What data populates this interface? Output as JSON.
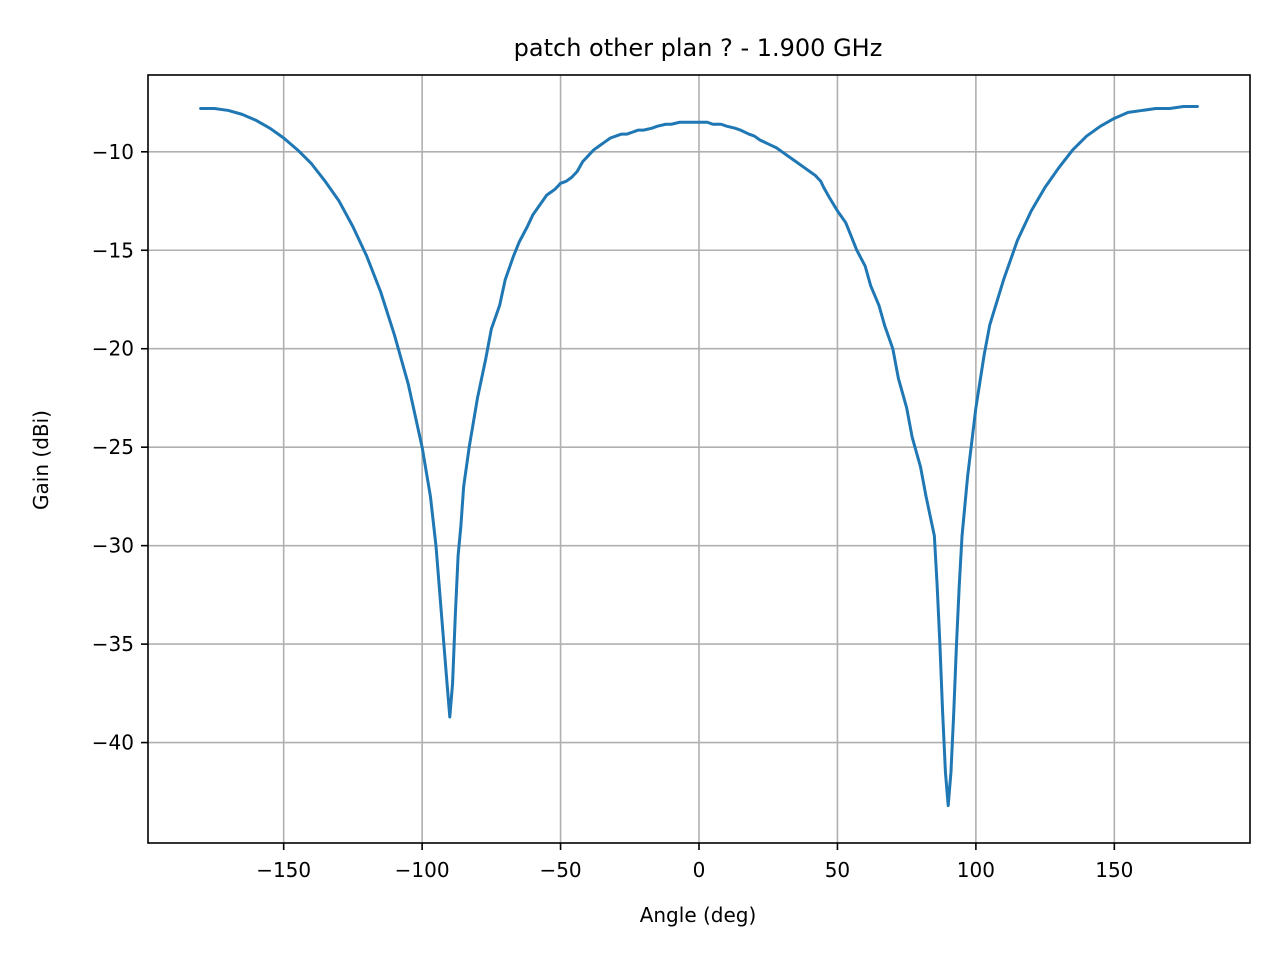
{
  "chart_data": {
    "type": "line",
    "title": "patch other plan ? - 1.900 GHz",
    "xlabel": "Angle (deg)",
    "ylabel": "Gain (dBi)",
    "xlim": [
      -199,
      199
    ],
    "ylim": [
      -45.1,
      -6.1
    ],
    "xticks": [
      -150,
      -100,
      -50,
      0,
      50,
      100,
      150
    ],
    "xtick_labels": [
      "−150",
      "−100",
      "−50",
      "0",
      "50",
      "100",
      "150"
    ],
    "yticks": [
      -10,
      -15,
      -20,
      -25,
      -30,
      -35,
      -40
    ],
    "ytick_labels": [
      "−10",
      "−15",
      "−20",
      "−25",
      "−30",
      "−35",
      "−40"
    ],
    "grid": true,
    "series": [
      {
        "color": "#1f77b4",
        "x": [
          -180,
          -175,
          -170,
          -165,
          -160,
          -155,
          -150,
          -145,
          -140,
          -135,
          -130,
          -125,
          -120,
          -115,
          -110,
          -105,
          -100,
          -97,
          -95,
          -93,
          -91,
          -90,
          -89,
          -88,
          -87,
          -86,
          -85,
          -83,
          -80,
          -77,
          -75,
          -72,
          -70,
          -67,
          -65,
          -62,
          -60,
          -57,
          -55,
          -52,
          -50,
          -48,
          -46,
          -44,
          -42,
          -40,
          -38,
          -36,
          -34,
          -32,
          -30,
          -28,
          -26,
          -24,
          -22,
          -20,
          -17,
          -15,
          -12,
          -10,
          -7,
          -5,
          -2,
          0,
          3,
          5,
          8,
          10,
          13,
          15,
          18,
          20,
          22,
          25,
          28,
          30,
          32,
          35,
          38,
          40,
          42,
          44,
          45,
          47,
          50,
          53,
          55,
          57,
          60,
          62,
          65,
          67,
          70,
          72,
          75,
          77,
          80,
          82,
          85,
          86,
          87,
          88,
          89,
          90,
          91,
          92,
          93,
          94,
          95,
          97,
          100,
          103,
          105,
          110,
          115,
          120,
          125,
          130,
          135,
          140,
          145,
          150,
          155,
          160,
          165,
          170,
          175,
          180
        ],
        "y": [
          -7.8,
          -7.8,
          -7.9,
          -8.1,
          -8.4,
          -8.8,
          -9.3,
          -9.9,
          -10.6,
          -11.5,
          -12.5,
          -13.8,
          -15.3,
          -17.1,
          -19.3,
          -21.8,
          -25.0,
          -27.5,
          -30.0,
          -33.5,
          -37.0,
          -38.7,
          -37.0,
          -33.5,
          -30.5,
          -29.0,
          -27.0,
          -25.0,
          -22.5,
          -20.5,
          -19.0,
          -17.8,
          -16.5,
          -15.3,
          -14.6,
          -13.8,
          -13.2,
          -12.6,
          -12.2,
          -11.9,
          -11.6,
          -11.5,
          -11.3,
          -11.0,
          -10.5,
          -10.2,
          -9.9,
          -9.7,
          -9.5,
          -9.3,
          -9.2,
          -9.1,
          -9.1,
          -9.0,
          -8.9,
          -8.9,
          -8.8,
          -8.7,
          -8.6,
          -8.6,
          -8.5,
          -8.5,
          -8.5,
          -8.5,
          -8.5,
          -8.6,
          -8.6,
          -8.7,
          -8.8,
          -8.9,
          -9.1,
          -9.2,
          -9.4,
          -9.6,
          -9.8,
          -10.0,
          -10.2,
          -10.5,
          -10.8,
          -11.0,
          -11.2,
          -11.5,
          -11.8,
          -12.3,
          -13.0,
          -13.6,
          -14.3,
          -15.0,
          -15.8,
          -16.8,
          -17.8,
          -18.8,
          -20.0,
          -21.5,
          -23.0,
          -24.5,
          -26.0,
          -27.5,
          -29.5,
          -32.0,
          -35.0,
          -38.5,
          -41.5,
          -43.2,
          -41.5,
          -38.5,
          -35.0,
          -32.0,
          -29.5,
          -26.5,
          -23.0,
          -20.3,
          -18.8,
          -16.5,
          -14.5,
          -13.0,
          -11.8,
          -10.8,
          -9.9,
          -9.2,
          -8.7,
          -8.3,
          -8.0,
          -7.9,
          -7.8,
          -7.8,
          -7.7,
          -7.7
        ]
      }
    ]
  }
}
